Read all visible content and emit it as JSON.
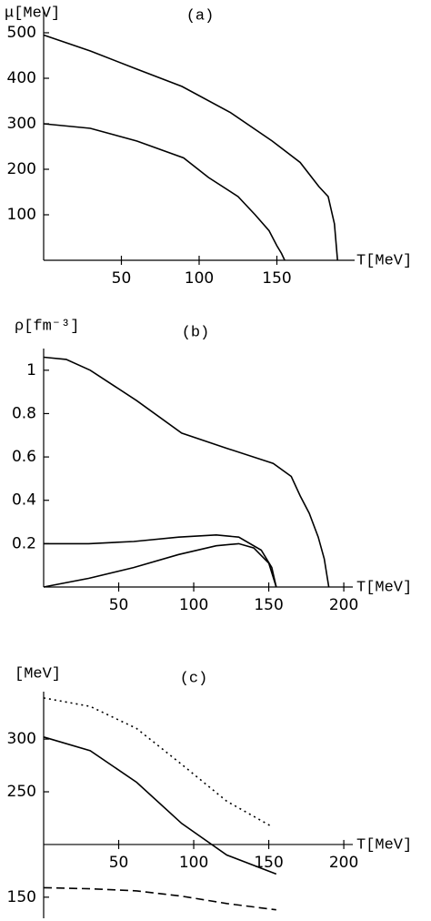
{
  "chart_data": [
    {
      "type": "line",
      "title": "(a)",
      "ylabel": "μ[MeV]",
      "xlabel": "T[MeV]",
      "xlim": [
        0,
        200
      ],
      "ylim": [
        0,
        550
      ],
      "xticks": [
        50,
        100,
        150
      ],
      "yticks": [
        100,
        200,
        300,
        400,
        500
      ],
      "series": [
        {
          "color": "#000000",
          "dash": "solid",
          "x": [
            0,
            30,
            60,
            89,
            120,
            147,
            165,
            177,
            183,
            187,
            189
          ],
          "values": [
            495,
            460,
            420,
            382,
            325,
            262,
            215,
            162,
            140,
            80,
            0
          ]
        },
        {
          "color": "#000000",
          "dash": "solid",
          "x": [
            0,
            30,
            60,
            90,
            106,
            125,
            136,
            145,
            150,
            153,
            155
          ],
          "values": [
            300,
            290,
            262,
            225,
            182,
            140,
            100,
            65,
            32,
            15,
            0
          ]
        }
      ]
    },
    {
      "type": "line",
      "title": "(b)",
      "ylabel": "ρ[fm⁻³]",
      "xlabel": "T[MeV]",
      "xlim": [
        0,
        206
      ],
      "ylim": [
        0,
        1.1
      ],
      "xticks": [
        50,
        100,
        150,
        200
      ],
      "yticks": [
        0.2,
        0.4,
        0.6,
        0.8,
        1
      ],
      "series": [
        {
          "color": "#000000",
          "dash": "solid",
          "x": [
            0,
            15,
            31,
            62,
            92,
            122,
            153,
            165,
            171,
            177,
            183,
            187,
            190
          ],
          "values": [
            1.06,
            1.05,
            1.0,
            0.86,
            0.71,
            0.64,
            0.57,
            0.51,
            0.42,
            0.34,
            0.23,
            0.13,
            0
          ]
        },
        {
          "color": "#000000",
          "dash": "solid",
          "x": [
            0,
            30,
            60,
            90,
            115,
            130,
            145,
            152,
            155
          ],
          "values": [
            0.2,
            0.2,
            0.21,
            0.23,
            0.24,
            0.23,
            0.17,
            0.09,
            0
          ]
        },
        {
          "color": "#000000",
          "dash": "solid",
          "x": [
            0,
            30,
            60,
            90,
            115,
            130,
            140,
            150,
            155
          ],
          "values": [
            0,
            0.04,
            0.09,
            0.15,
            0.19,
            0.2,
            0.18,
            0.11,
            0
          ]
        }
      ]
    },
    {
      "type": "line",
      "title": "(c)",
      "ylabel": "[MeV]",
      "xlabel": "T[MeV]",
      "xlim": [
        0,
        206
      ],
      "ylim": [
        130,
        345
      ],
      "xaxis_at": 200,
      "xticks": [
        50,
        100,
        150,
        200
      ],
      "yticks": [
        150,
        250,
        300
      ],
      "series": [
        {
          "color": "#000000",
          "dash": "dotted",
          "x": [
            0,
            31,
            62,
            92,
            122,
            152
          ],
          "values": [
            339,
            331,
            310,
            276,
            241,
            217
          ]
        },
        {
          "color": "#000000",
          "dash": "solid",
          "x": [
            0,
            31,
            62,
            92,
            122,
            155
          ],
          "values": [
            302,
            289,
            259,
            220,
            190,
            172
          ]
        },
        {
          "color": "#000000",
          "dash": "dashed",
          "x": [
            0,
            31,
            62,
            92,
            122,
            155
          ],
          "values": [
            159,
            158,
            156,
            151,
            144,
            138
          ]
        }
      ]
    }
  ]
}
